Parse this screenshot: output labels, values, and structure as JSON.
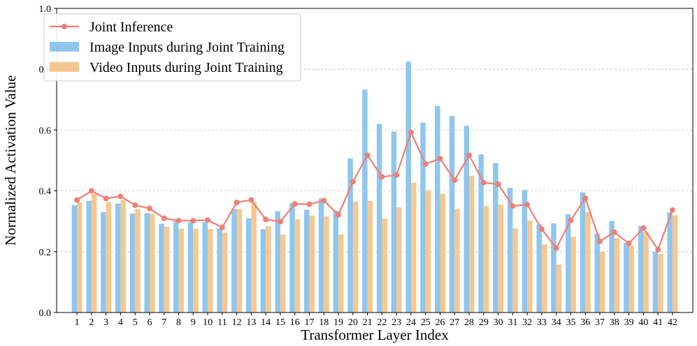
{
  "chart_data": {
    "type": "bar",
    "xlabel": "Transformer Layer Index",
    "ylabel": "Normalized Activation Value",
    "ylim": [
      0.0,
      1.0
    ],
    "yticks": [
      "0.0",
      "0.2",
      "0.4",
      "0.6",
      "0.8",
      "1.0"
    ],
    "grid": "horizontal-dashed",
    "legend_position": "top-left",
    "categories": [
      "1",
      "2",
      "3",
      "4",
      "5",
      "6",
      "7",
      "8",
      "9",
      "10",
      "11",
      "12",
      "13",
      "14",
      "15",
      "16",
      "17",
      "18",
      "19",
      "20",
      "21",
      "22",
      "23",
      "24",
      "25",
      "26",
      "27",
      "28",
      "29",
      "30",
      "31",
      "32",
      "33",
      "34",
      "35",
      "36",
      "37",
      "38",
      "39",
      "40",
      "41",
      "42"
    ],
    "series": [
      {
        "name": "Joint Inference",
        "kind": "line",
        "color": "#f07f73",
        "values": [
          0.37,
          0.4,
          0.375,
          0.382,
          0.353,
          0.342,
          0.31,
          0.302,
          0.302,
          0.304,
          0.28,
          0.362,
          0.37,
          0.306,
          0.299,
          0.357,
          0.356,
          0.368,
          0.321,
          0.43,
          0.517,
          0.446,
          0.452,
          0.592,
          0.488,
          0.506,
          0.435,
          0.517,
          0.427,
          0.422,
          0.35,
          0.355,
          0.274,
          0.212,
          0.303,
          0.376,
          0.234,
          0.264,
          0.227,
          0.278,
          0.207,
          0.337
        ]
      },
      {
        "name": "Image Inputs during Joint Training",
        "kind": "bar",
        "color": "#8fc6ee",
        "values": [
          0.353,
          0.367,
          0.33,
          0.358,
          0.325,
          0.327,
          0.292,
          0.3,
          0.297,
          0.298,
          0.276,
          0.34,
          0.31,
          0.274,
          0.333,
          0.36,
          0.338,
          0.375,
          0.335,
          0.506,
          0.733,
          0.62,
          0.595,
          0.825,
          0.624,
          0.679,
          0.646,
          0.614,
          0.52,
          0.492,
          0.41,
          0.403,
          0.29,
          0.293,
          0.323,
          0.395,
          0.259,
          0.301,
          0.229,
          0.284,
          0.2,
          0.33
        ]
      },
      {
        "name": "Video Inputs during Joint Training",
        "kind": "bar",
        "color": "#f6c891",
        "values": [
          0.362,
          0.39,
          0.363,
          0.37,
          0.34,
          0.325,
          0.282,
          0.276,
          0.275,
          0.275,
          0.263,
          0.34,
          0.363,
          0.284,
          0.257,
          0.307,
          0.319,
          0.316,
          0.257,
          0.365,
          0.367,
          0.309,
          0.346,
          0.427,
          0.401,
          0.39,
          0.341,
          0.45,
          0.35,
          0.355,
          0.277,
          0.302,
          0.224,
          0.158,
          0.249,
          0.33,
          0.2,
          0.245,
          0.219,
          0.265,
          0.192,
          0.32
        ]
      }
    ]
  }
}
